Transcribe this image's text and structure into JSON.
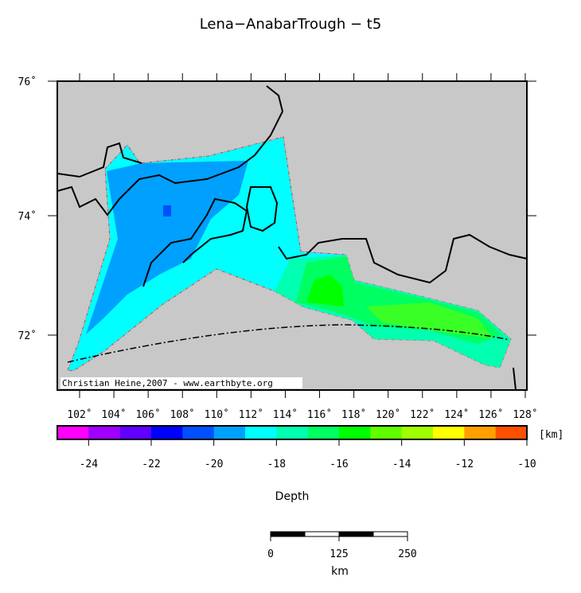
{
  "title": "Lena−AnabarTrough − t5",
  "map": {
    "lat_labels": [
      "76˚",
      "74˚",
      "72˚"
    ],
    "lon_labels": [
      "102˚",
      "104˚",
      "106˚",
      "108˚",
      "110˚",
      "112˚",
      "114˚",
      "116˚",
      "118˚",
      "120˚",
      "122˚",
      "124˚",
      "126˚",
      "128˚"
    ],
    "credit": "Christian Heine,2007 - www.earthbyte.org"
  },
  "colorbar": {
    "label": "Depth",
    "unit": "[km]",
    "range": [
      -25,
      -10
    ],
    "ticks": [
      -24,
      -22,
      -20,
      -18,
      -16,
      -14,
      -12,
      -10
    ],
    "colors": [
      "#ff00ff",
      "#a000ff",
      "#6000ff",
      "#0000ff",
      "#0050ff",
      "#00a0ff",
      "#00ffff",
      "#00ffb0",
      "#00ff60",
      "#00ff00",
      "#60ff00",
      "#a0ff00",
      "#ffff00",
      "#ffa000",
      "#ff5000"
    ]
  },
  "scalebar": {
    "range": [
      0,
      250
    ],
    "ticks": [
      0,
      125,
      250
    ],
    "unit": "km"
  }
}
